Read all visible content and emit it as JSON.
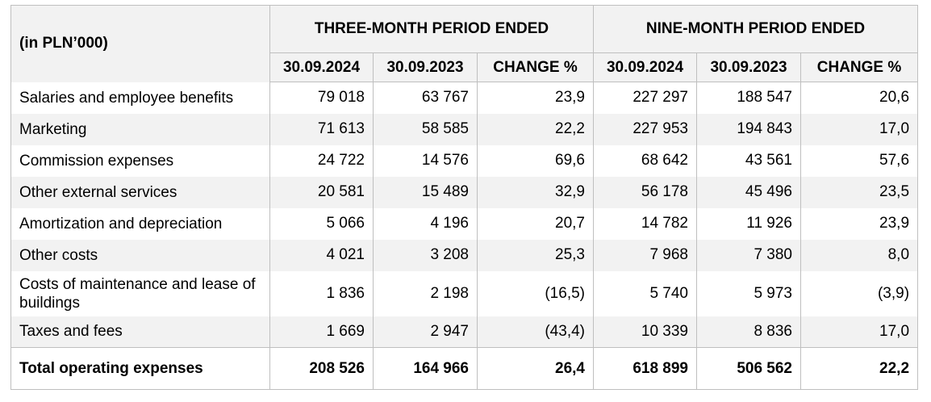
{
  "table": {
    "corner_label": "(in PLN’000)",
    "groups": [
      "THREE-MONTH PERIOD ENDED",
      "NINE-MONTH PERIOD ENDED"
    ],
    "columns": [
      "30.09.2024",
      "30.09.2023",
      "CHANGE %",
      "30.09.2024",
      "30.09.2023",
      "CHANGE %"
    ],
    "rows": [
      {
        "label": "Salaries and employee benefits",
        "values": [
          "79 018",
          "63 767",
          "23,9",
          "227 297",
          "188 547",
          "20,6"
        ]
      },
      {
        "label": "Marketing",
        "values": [
          "71 613",
          "58 585",
          "22,2",
          "227 953",
          "194 843",
          "17,0"
        ]
      },
      {
        "label": "Commission expenses",
        "values": [
          "24 722",
          "14 576",
          "69,6",
          "68 642",
          "43 561",
          "57,6"
        ]
      },
      {
        "label": "Other external services",
        "values": [
          "20 581",
          "15 489",
          "32,9",
          "56 178",
          "45 496",
          "23,5"
        ]
      },
      {
        "label": "Amortization and depreciation",
        "values": [
          "5 066",
          "4 196",
          "20,7",
          "14 782",
          "11 926",
          "23,9"
        ]
      },
      {
        "label": "Other costs",
        "values": [
          "4 021",
          "3 208",
          "25,3",
          "7 968",
          "7 380",
          "8,0"
        ]
      },
      {
        "label": "Costs of maintenance and lease of buildings",
        "values": [
          "1 836",
          "2 198",
          "(16,5)",
          "5 740",
          "5 973",
          "(3,9)"
        ]
      },
      {
        "label": "Taxes and fees",
        "values": [
          "1 669",
          "2 947",
          "(43,4)",
          "10 339",
          "8 836",
          "17,0"
        ]
      }
    ],
    "total": {
      "label": "Total operating expenses",
      "values": [
        "208 526",
        "164 966",
        "26,4",
        "618 899",
        "506 562",
        "22,2"
      ]
    }
  }
}
